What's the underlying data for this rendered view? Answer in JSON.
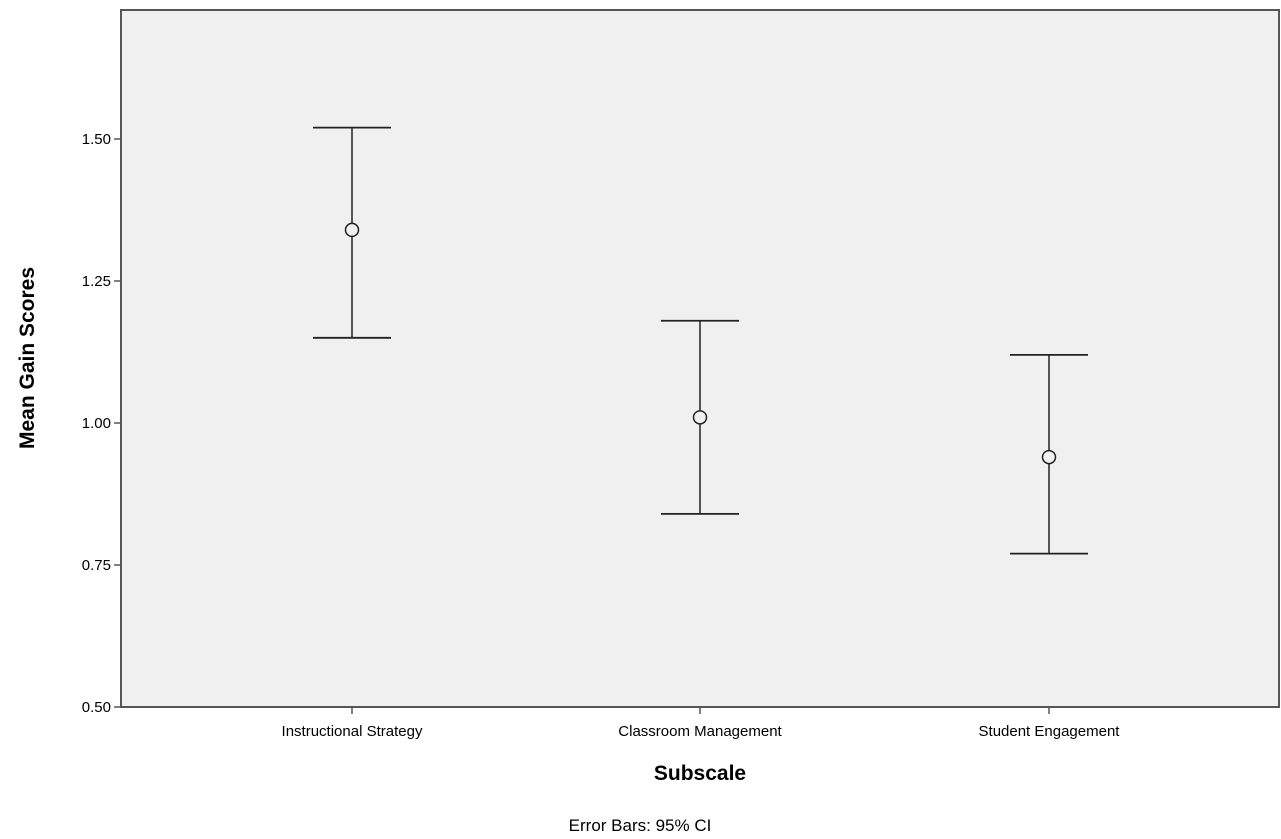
{
  "chart_data": {
    "type": "error-bar",
    "xlabel": "Subscale",
    "ylabel": "Mean Gain Scores",
    "footnote": "Error Bars: 95% CI",
    "ylim": [
      0.5,
      1.7
    ],
    "yticks": [
      0.5,
      0.75,
      1.0,
      1.25,
      1.5
    ],
    "ytick_labels": [
      "0.50",
      "0.75",
      "1.00",
      "1.25",
      "1.50"
    ],
    "categories": [
      "Instructional Strategy",
      "Classroom Management",
      "Student Engagement"
    ],
    "means": [
      1.34,
      1.01,
      0.94
    ],
    "ci_lower": [
      1.15,
      0.84,
      0.77
    ],
    "ci_upper": [
      1.52,
      1.18,
      1.12
    ],
    "grid": false,
    "legend": "none",
    "colors": {
      "plot_background": "#f0f0f0",
      "axis": "#555555",
      "marker": "#222222"
    }
  }
}
